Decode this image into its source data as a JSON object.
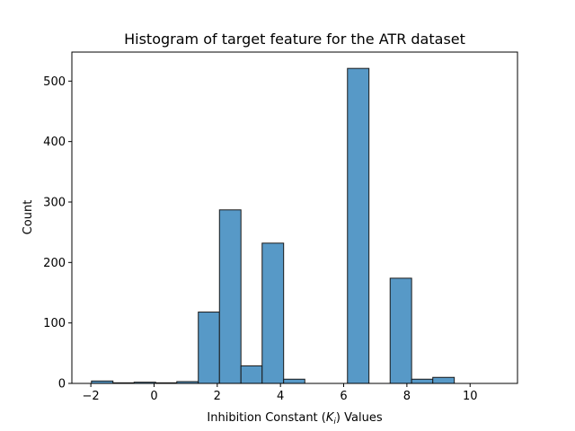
{
  "chart_data": {
    "type": "bar",
    "title": "Histogram of target feature for the ATR dataset",
    "xlabel": "Inhibition Constant ($K_i$) Values",
    "xlabel_parts": {
      "prefix": "Inhibition Constant (",
      "var": "K",
      "sub": "i",
      "suffix": ") Values"
    },
    "ylabel": "Count",
    "xlim": [
      -2.6,
      11.5
    ],
    "ylim": [
      0,
      548
    ],
    "xticks": [
      -2,
      0,
      2,
      4,
      6,
      8,
      10
    ],
    "yticks": [
      0,
      100,
      200,
      300,
      400,
      500
    ],
    "bar_color": "#5799c7",
    "edge_color": "#1a1a1a",
    "bins": [
      {
        "x0": -1.98,
        "x1": -1.3,
        "count": 4
      },
      {
        "x0": -1.3,
        "x1": -0.63,
        "count": 1
      },
      {
        "x0": -0.63,
        "x1": 0.05,
        "count": 2
      },
      {
        "x0": 0.05,
        "x1": 0.72,
        "count": 1
      },
      {
        "x0": 0.72,
        "x1": 1.4,
        "count": 3
      },
      {
        "x0": 1.4,
        "x1": 2.07,
        "count": 118
      },
      {
        "x0": 2.07,
        "x1": 2.75,
        "count": 287
      },
      {
        "x0": 2.75,
        "x1": 3.42,
        "count": 29
      },
      {
        "x0": 3.42,
        "x1": 4.1,
        "count": 232
      },
      {
        "x0": 4.1,
        "x1": 4.77,
        "count": 7
      },
      {
        "x0": 4.77,
        "x1": 5.45,
        "count": 0
      },
      {
        "x0": 5.45,
        "x1": 6.12,
        "count": 0
      },
      {
        "x0": 6.12,
        "x1": 6.8,
        "count": 521
      },
      {
        "x0": 6.8,
        "x1": 7.47,
        "count": 0
      },
      {
        "x0": 7.47,
        "x1": 8.15,
        "count": 174
      },
      {
        "x0": 8.15,
        "x1": 8.82,
        "count": 7
      },
      {
        "x0": 8.82,
        "x1": 9.5,
        "count": 10
      },
      {
        "x0": 9.5,
        "x1": 10.17,
        "count": 0
      },
      {
        "x0": 10.17,
        "x1": 10.85,
        "count": 0
      }
    ]
  }
}
